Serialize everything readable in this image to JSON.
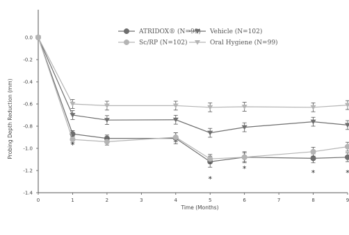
{
  "chart_data": {
    "type": "line",
    "title": "",
    "xlabel": "Time (Months)",
    "ylabel": "Probing Depth Reduction (mm)",
    "xlim": [
      0,
      9
    ],
    "ylim": [
      -1.4,
      0.1
    ],
    "x_ticks": [
      "0",
      "1",
      "2",
      "3",
      "4",
      "5",
      "6",
      "7",
      "8",
      "9"
    ],
    "y_ticks": [
      "0.0",
      "-0.2",
      "-0.4",
      "-0.6",
      "-0.8",
      "-1.0",
      "-1.2",
      "-1.4"
    ],
    "grid": false,
    "legend_position": "top-right",
    "series": [
      {
        "name": "ATRIDOX® (N=99)",
        "color": "#6e6e6e",
        "marker": "circle",
        "x": [
          0,
          1,
          2,
          4,
          5,
          6,
          8,
          9
        ],
        "values": [
          0.0,
          -0.87,
          -0.91,
          -0.91,
          -1.12,
          -1.08,
          -1.09,
          -1.08
        ],
        "errors": [
          0,
          0.03,
          0.03,
          0.05,
          0.05,
          0.05,
          0.04,
          0.04
        ]
      },
      {
        "name": "Vehicle (N=102)",
        "color": "#6e6e6e",
        "marker": "triangle-down",
        "x": [
          0,
          1,
          2,
          4,
          5,
          6,
          8,
          9
        ],
        "values": [
          0.0,
          -0.7,
          -0.745,
          -0.742,
          -0.86,
          -0.81,
          -0.76,
          -0.79
        ],
        "errors": [
          0,
          0.04,
          0.04,
          0.04,
          0.04,
          0.04,
          0.04,
          0.04
        ]
      },
      {
        "name": "Sc/RP (N=102)",
        "color": "#b4b4b4",
        "marker": "circle",
        "x": [
          0,
          1,
          2,
          4,
          5,
          6,
          8,
          9
        ],
        "values": [
          0.0,
          -0.92,
          -0.94,
          -0.9,
          -1.095,
          -1.08,
          -1.03,
          -0.985
        ],
        "errors": [
          0,
          0.03,
          0.03,
          0.04,
          0.04,
          0.04,
          0.04,
          0.04
        ]
      },
      {
        "name": "Oral Hygiene (N=99)",
        "color": "#b4b4b4",
        "marker": "triangle-down",
        "x": [
          0,
          1,
          2,
          4,
          5,
          6,
          8,
          9
        ],
        "values": [
          0.0,
          -0.6,
          -0.615,
          -0.615,
          -0.63,
          -0.625,
          -0.63,
          -0.61
        ],
        "errors": [
          0,
          0.04,
          0.04,
          0.04,
          0.04,
          0.04,
          0.04,
          0.04
        ]
      }
    ],
    "annotations": [
      {
        "text": "*",
        "x": 1
      },
      {
        "text": "*",
        "x": 5
      },
      {
        "text": "*",
        "x": 6
      },
      {
        "text": "*",
        "x": 8
      },
      {
        "text": "*",
        "x": 9
      }
    ]
  }
}
